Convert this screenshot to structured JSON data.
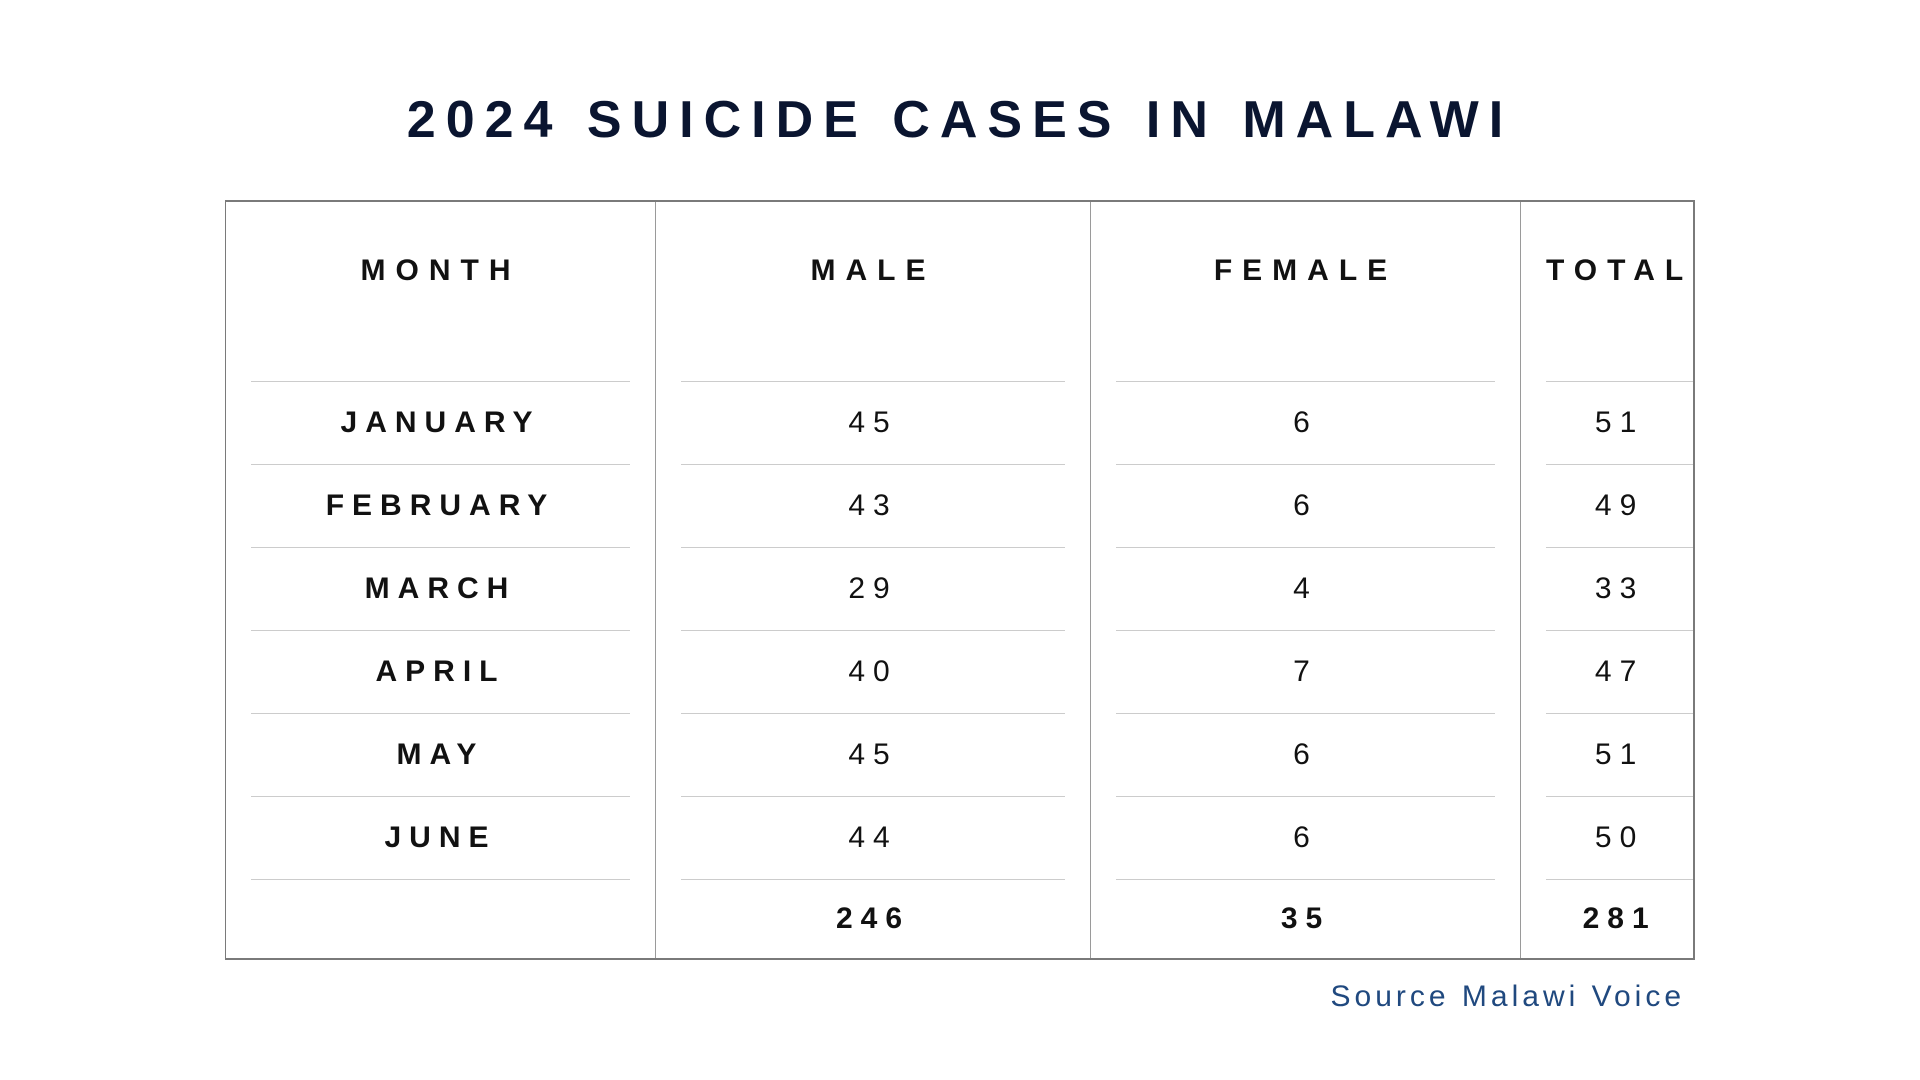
{
  "title": "2024 SUICIDE CASES IN MALAWI",
  "table": {
    "type": "table",
    "background_color": "#ffffff",
    "border_color": "#7a7a7a",
    "row_divider_color": "#cccccc",
    "header_fontsize": 30,
    "header_font_weight": 900,
    "header_letter_spacing": 10,
    "cell_fontsize": 30,
    "cell_letter_spacing": 8,
    "text_color": "#111111",
    "columns": [
      "MONTH",
      "MALE",
      "FEMALE",
      "TOTAL"
    ],
    "rows": [
      {
        "month": "JANUARY",
        "male": "45",
        "female": "6",
        "total": "51"
      },
      {
        "month": "FEBRUARY",
        "male": "43",
        "female": "6",
        "total": "49"
      },
      {
        "month": "MARCH",
        "male": "29",
        "female": "4",
        "total": "33"
      },
      {
        "month": "APRIL",
        "male": "40",
        "female": "7",
        "total": "47"
      },
      {
        "month": "MAY",
        "male": "45",
        "female": "6",
        "total": "51"
      },
      {
        "month": "JUNE",
        "male": "44",
        "female": "6",
        "total": "50"
      }
    ],
    "totals": {
      "month": "",
      "male": "246",
      "female": "35",
      "total": "281"
    }
  },
  "source": "Source Malawi Voice",
  "source_color": "#20497f",
  "title_color": "#0a1530",
  "title_fontsize": 52,
  "title_letter_spacing": 10
}
